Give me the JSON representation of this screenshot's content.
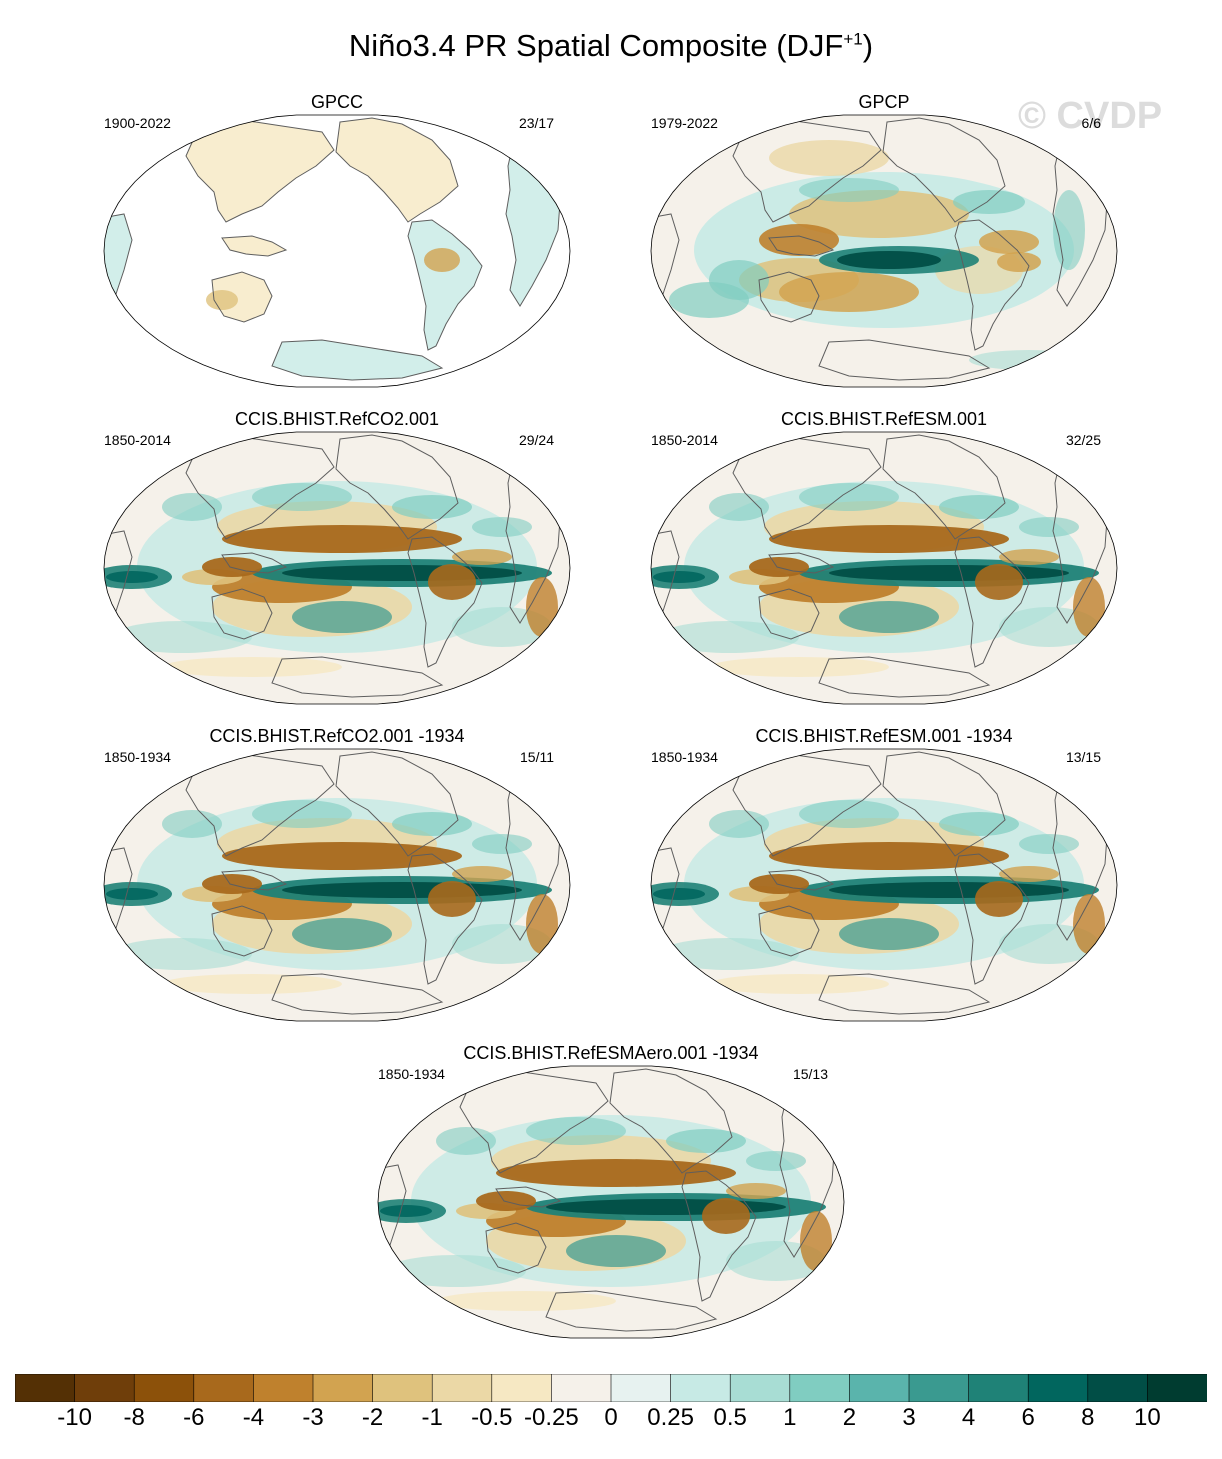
{
  "header": {
    "title_main": "Niño3.4 PR Spatial Composite (DJF",
    "title_sup": "+1",
    "title_end": ")",
    "watermark": "© CVDP"
  },
  "panels": [
    {
      "title": "GPCC",
      "years": "1900-2022",
      "count": "23/17",
      "land_only": true
    },
    {
      "title": "GPCP",
      "years": "1979-2022",
      "count": "6/6",
      "land_only": false
    },
    {
      "title": "CCIS.BHIST.RefCO2.001",
      "years": "1850-2014",
      "count": "29/24",
      "land_only": false
    },
    {
      "title": "CCIS.BHIST.RefESM.001",
      "years": "1850-2014",
      "count": "32/25",
      "land_only": false
    },
    {
      "title": "CCIS.BHIST.RefCO2.001 -1934",
      "years": "1850-1934",
      "count": "15/11",
      "land_only": false
    },
    {
      "title": "CCIS.BHIST.RefESM.001 -1934",
      "years": "1850-1934",
      "count": "13/15",
      "land_only": false
    },
    {
      "title": "CCIS.BHIST.RefESMAero.001 -1934",
      "years": "1850-1934",
      "count": "15/13",
      "land_only": false
    }
  ],
  "colorbar": {
    "colors": [
      "#543005",
      "#6f3e0a",
      "#8c510a",
      "#a8691c",
      "#bf812d",
      "#d2a350",
      "#dfc27d",
      "#ebd8a6",
      "#f6e8c3",
      "#f5f1ea",
      "#e7f2f0",
      "#c7eae5",
      "#a8ddd4",
      "#80cdc1",
      "#5ab4ac",
      "#3a9a90",
      "#1f8277",
      "#01665e",
      "#014e46",
      "#003c30"
    ],
    "labels": [
      "-10",
      "-8",
      "-6",
      "-4",
      "-3",
      "-2",
      "-1",
      "-0.5",
      "-0.25",
      "0",
      "0.25",
      "0.5",
      "1",
      "2",
      "3",
      "4",
      "6",
      "8",
      "10"
    ]
  }
}
